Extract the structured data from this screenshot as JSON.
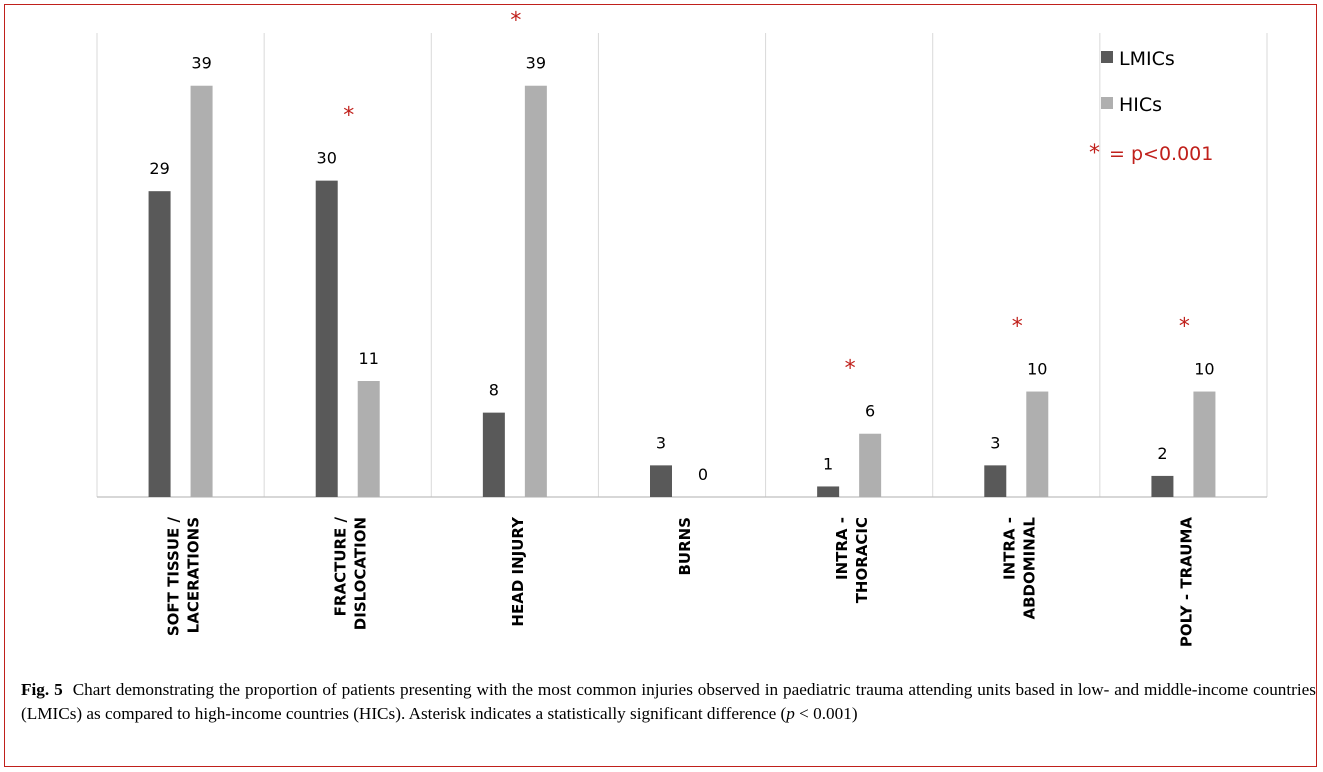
{
  "chart_data": {
    "type": "bar",
    "categories": [
      [
        "SOFT TISSUE /",
        "LACERATIONS"
      ],
      [
        "FRACTURE /",
        "DISLOCATION"
      ],
      [
        "HEAD INJURY"
      ],
      [
        "BURNS"
      ],
      [
        "INTRA -",
        "THORACIC"
      ],
      [
        "INTRA -",
        "ABDOMINAL"
      ],
      [
        "POLY - TRAUMA"
      ]
    ],
    "series": [
      {
        "name": "LMICs",
        "values": [
          29,
          30,
          8,
          3,
          1,
          3,
          2
        ],
        "color": "#595959"
      },
      {
        "name": "HICs",
        "values": [
          39,
          11,
          39,
          0,
          6,
          10,
          10
        ],
        "color": "#afafaf"
      }
    ],
    "significant": [
      false,
      true,
      true,
      false,
      true,
      true,
      true
    ],
    "significance_marker": "*",
    "ylim": [
      0,
      44
    ],
    "grid": "vertical separators between categories",
    "legend_position": "top-right",
    "data_labels": true
  },
  "legend": {
    "items": [
      "LMICs",
      "HICs"
    ],
    "star": "*",
    "significance_text": "= p<0.001"
  },
  "caption": {
    "label": "Fig. 5",
    "text_1": "Chart demonstrating the proportion of patients presenting with the most common injuries observed in paediatric trauma attending units based in low- and middle-income countries (LMICs) as compared to high-income countries (HICs). Asterisk indicates a statistically significant difference (",
    "p_symbol": "p",
    "text_2": " < 0.001)"
  },
  "colors": {
    "border": "#c0201b",
    "star": "#c0201b",
    "grid": "#d9d9d9",
    "axis": "#bfbfbf",
    "lmics": "#595959",
    "hics": "#afafaf"
  }
}
